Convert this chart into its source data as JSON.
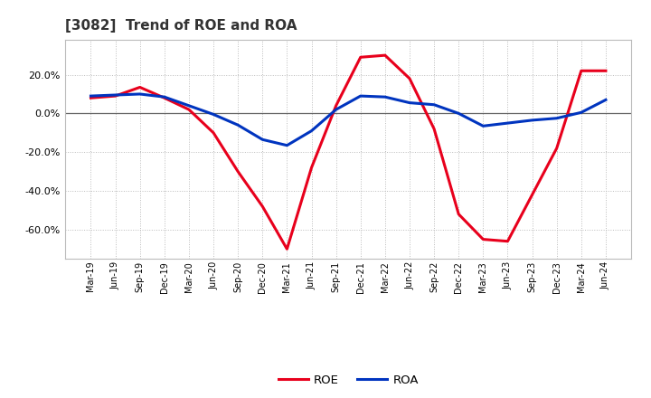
{
  "title": "[3082]  Trend of ROE and ROA",
  "x_labels": [
    "Mar-19",
    "Jun-19",
    "Sep-19",
    "Dec-19",
    "Mar-20",
    "Jun-20",
    "Sep-20",
    "Dec-20",
    "Mar-21",
    "Jun-21",
    "Sep-21",
    "Dec-21",
    "Mar-22",
    "Jun-22",
    "Sep-22",
    "Dec-22",
    "Mar-23",
    "Jun-23",
    "Sep-23",
    "Dec-23",
    "Mar-24",
    "Jun-24"
  ],
  "roe": [
    8.0,
    9.0,
    13.5,
    8.0,
    2.0,
    -10.0,
    -30.0,
    -48.0,
    -70.0,
    -28.0,
    4.0,
    29.0,
    30.0,
    18.0,
    -8.0,
    -52.0,
    -65.0,
    -66.0,
    -42.0,
    -18.0,
    22.0,
    22.0
  ],
  "roa": [
    9.0,
    9.5,
    10.0,
    8.5,
    4.0,
    -0.5,
    -6.0,
    -13.5,
    -16.5,
    -9.0,
    2.0,
    9.0,
    8.5,
    5.5,
    4.5,
    0.0,
    -6.5,
    -5.0,
    -3.5,
    -2.5,
    0.5,
    7.0
  ],
  "roe_color": "#e8001c",
  "roa_color": "#0034bf",
  "ylim": [
    -75,
    38
  ],
  "yticks": [
    20.0,
    0.0,
    -20.0,
    -40.0,
    -60.0
  ],
  "background_color": "#ffffff",
  "plot_bg_color": "#ffffff",
  "grid_color": "#bbbbbb",
  "title_fontsize": 11,
  "title_color": "#333333",
  "line_width": 2.2
}
